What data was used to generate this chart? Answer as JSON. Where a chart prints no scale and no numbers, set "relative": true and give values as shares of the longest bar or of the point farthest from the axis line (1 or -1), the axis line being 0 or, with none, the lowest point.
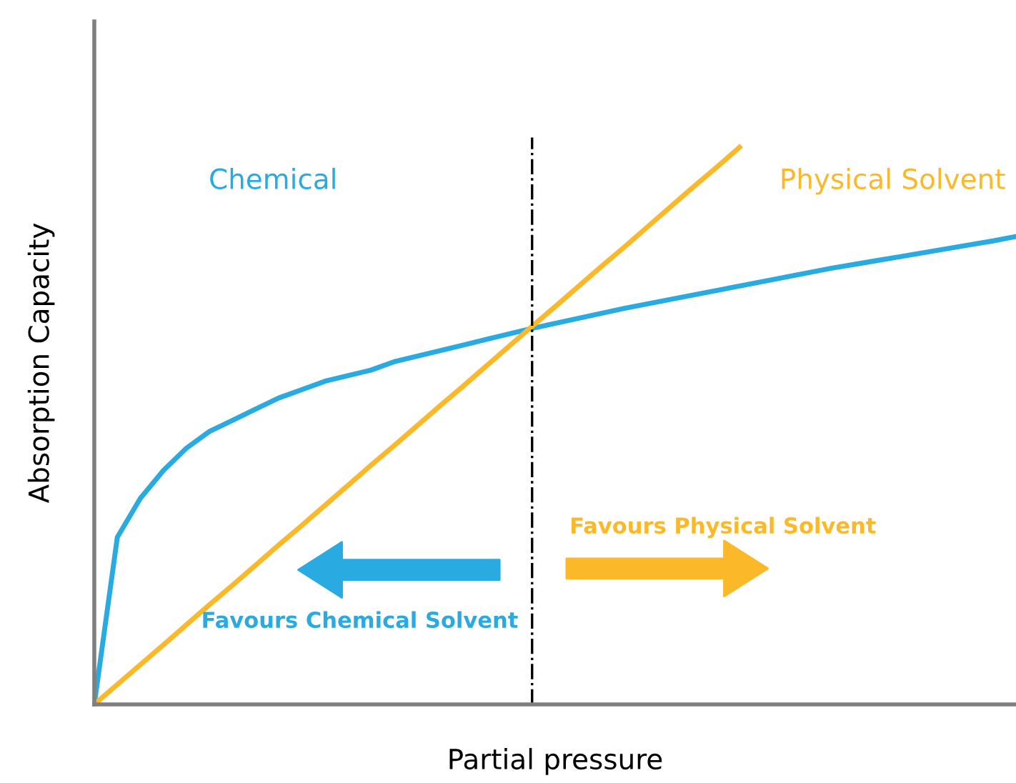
{
  "chart_data": {
    "type": "line",
    "relative": true,
    "xlabel": "Partial pressure",
    "ylabel": "Absorption Capacity",
    "categories": [
      null,
      null,
      null,
      null,
      null,
      null,
      null,
      null,
      null,
      null,
      null,
      null,
      null,
      null,
      null,
      null,
      null,
      null,
      null,
      null,
      null,
      null,
      null,
      null,
      null,
      null,
      null,
      null,
      null,
      null,
      null,
      null,
      null,
      null,
      null,
      null,
      null,
      null,
      null,
      null,
      null
    ],
    "series": [
      {
        "name": "Chemical",
        "color": "#29abe2",
        "values": [
          0,
          0.3,
          0.37,
          0.42,
          0.46,
          0.49,
          0.51,
          0.53,
          0.55,
          0.565,
          0.58,
          0.59,
          0.6,
          0.615,
          0.625,
          0.635,
          0.645,
          0.655,
          0.665,
          0.675,
          0.684,
          0.693,
          0.702,
          0.711,
          0.719,
          0.727,
          0.735,
          0.743,
          0.751,
          0.759,
          0.767,
          0.775,
          0.783,
          0.79,
          0.797,
          0.804,
          0.811,
          0.818,
          0.825,
          0.832,
          0.84
        ]
      },
      {
        "name": "Physical Solvent",
        "color": "#fbb829",
        "values": [
          0,
          0.0357,
          0.0714,
          0.107,
          0.143,
          0.179,
          0.214,
          0.25,
          0.286,
          0.321,
          0.357,
          0.393,
          0.429,
          0.464,
          0.5,
          0.536,
          0.571,
          0.607,
          0.643,
          0.679,
          0.714,
          0.75,
          0.786,
          0.821,
          0.857,
          0.893,
          0.929,
          0.964,
          1.0,
          null,
          null,
          null,
          null,
          null,
          null,
          null,
          null,
          null,
          null,
          null,
          null
        ]
      }
    ],
    "annotations": [
      "Favours Physical Solvent",
      "Favours Chemical Solvent"
    ],
    "legend": false,
    "marker": "none",
    "line_style": "solid"
  }
}
